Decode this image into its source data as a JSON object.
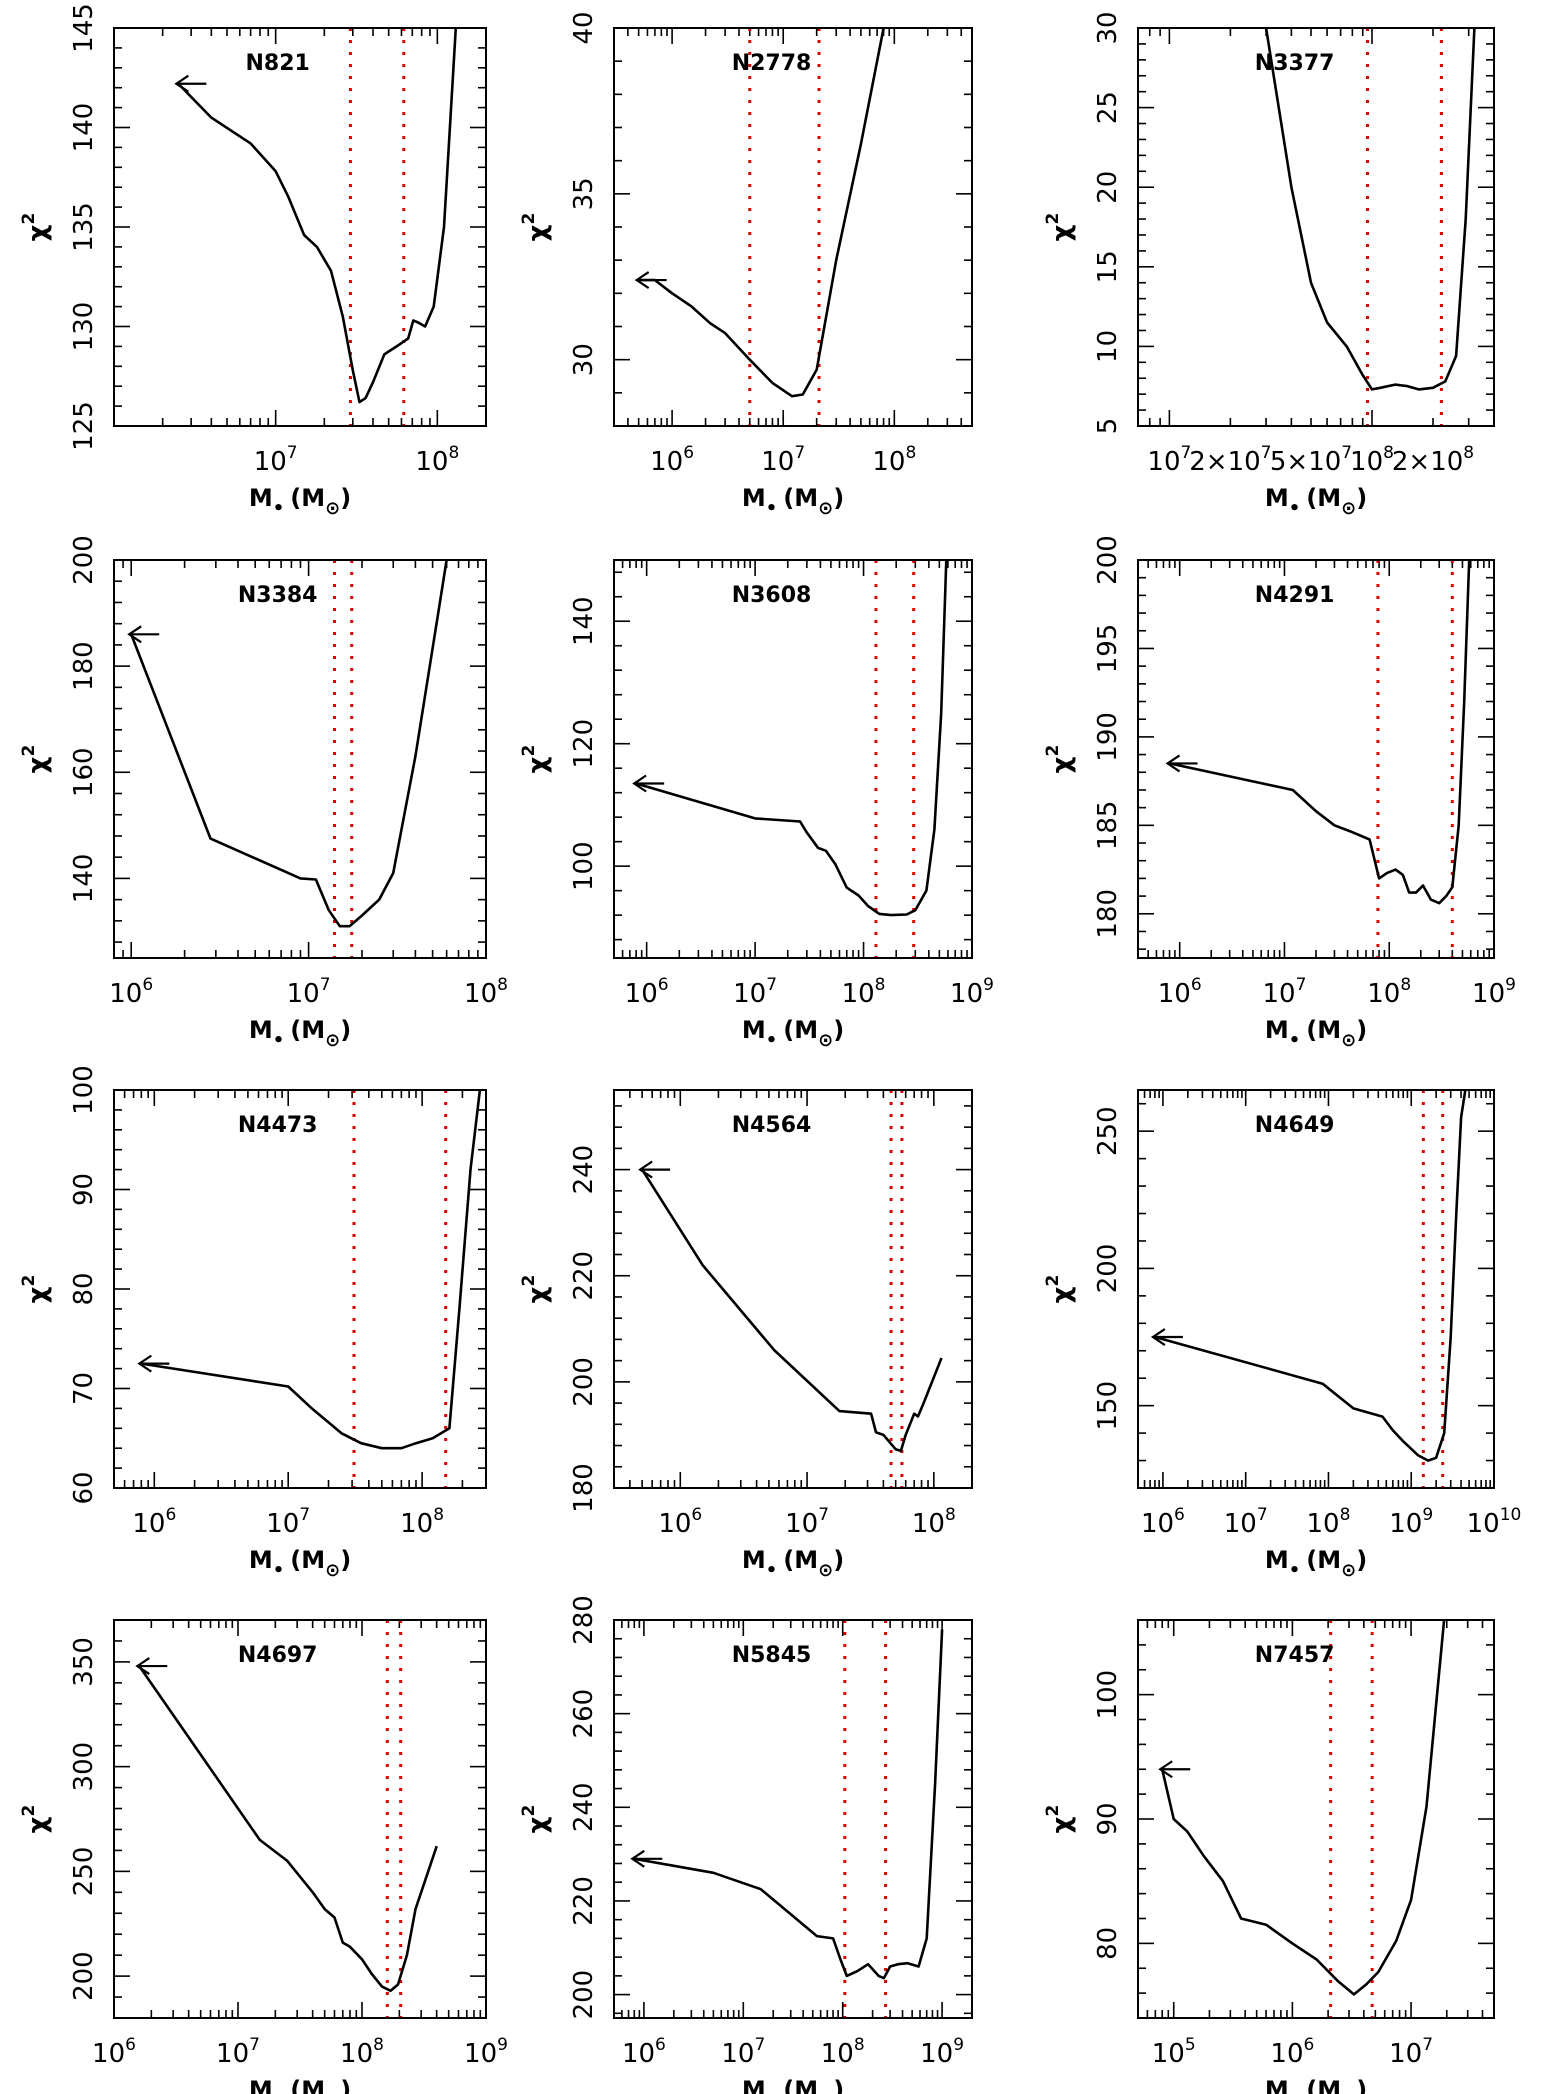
{
  "figure_axis_labels": {
    "y": "χ",
    "y_sup": "2",
    "x": "M",
    "x_sub": "•",
    "x_unit": "(M",
    "x_unit_sub": "⊙",
    "x_unit_end": ")"
  },
  "chart_data": [
    {
      "type": "line",
      "title": "N821",
      "xscale": "log",
      "xlim": [
        1000000.0,
        200000000.0
      ],
      "ylim": [
        125,
        145
      ],
      "xticks": [
        {
          "v": 10000000.0,
          "label": "10",
          "exp": "7"
        },
        {
          "v": 100000000.0,
          "label": "10",
          "exp": "8"
        }
      ],
      "yticks": [
        125,
        130,
        135,
        140,
        145
      ],
      "arrow": true,
      "bounds": [
        29000000.0,
        62000000.0
      ],
      "x": [
        2500000.0,
        4000000.0,
        7000000.0,
        10000000.0,
        12000000.0,
        15000000.0,
        18000000.0,
        22000000.0,
        26000000.0,
        30000000.0,
        33000000.0,
        36000000.0,
        40000000.0,
        47000000.0,
        56000000.0,
        66000000.0,
        71000000.0,
        76000000.0,
        84000000.0,
        95000000.0,
        110000000.0,
        130000000.0
      ],
      "y": [
        142.2,
        140.5,
        139.2,
        137.8,
        136.5,
        134.6,
        134,
        132.8,
        130.5,
        127.8,
        126.2,
        126.4,
        127.2,
        128.6,
        129,
        129.4,
        130.3,
        130.2,
        130,
        131,
        135,
        145
      ]
    },
    {
      "type": "line",
      "title": "N2778",
      "xscale": "log",
      "xlim": [
        300000.0,
        500000000.0
      ],
      "ylim": [
        28,
        40
      ],
      "xticks": [
        {
          "v": 1000000.0,
          "label": "10",
          "exp": "6"
        },
        {
          "v": 10000000.0,
          "label": "10",
          "exp": "7"
        },
        {
          "v": 100000000.0,
          "label": "10",
          "exp": "8"
        }
      ],
      "yticks": [
        30,
        35,
        40
      ],
      "arrow": true,
      "bounds": [
        5000000.0,
        21000000.0
      ],
      "x": [
        500000.0,
        700000.0,
        1000000.0,
        1500000.0,
        2200000.0,
        3000000.0,
        5000000.0,
        8000000.0,
        12000000.0,
        15000000.0,
        20000000.0,
        30000000.0,
        50000000.0,
        80000000.0
      ],
      "y": [
        32.4,
        32.4,
        32,
        31.6,
        31.1,
        30.8,
        30,
        29.3,
        28.9,
        28.95,
        29.7,
        33,
        36.5,
        40
      ]
    },
    {
      "type": "line",
      "title": "N3377",
      "xscale": "log",
      "xlim": [
        7000000.0,
        400000000.0
      ],
      "ylim": [
        5,
        30
      ],
      "xticks": [
        {
          "v": 10000000.0,
          "label": "10",
          "exp": "7"
        },
        {
          "v": 20000000.0,
          "label": "2×10",
          "exp": "7"
        },
        {
          "v": 50000000.0,
          "label": "5×10",
          "exp": "7"
        },
        {
          "v": 100000000.0,
          "label": "10",
          "exp": "8"
        },
        {
          "v": 200000000.0,
          "label": "2×10",
          "exp": "8"
        }
      ],
      "yticks": [
        5,
        10,
        15,
        20,
        25,
        30
      ],
      "arrow": false,
      "bounds": [
        95000000.0,
        220000000.0
      ],
      "x": [
        30000000.0,
        40000000.0,
        50000000.0,
        60000000.0,
        75000000.0,
        90000000.0,
        100000000.0,
        110000000.0,
        130000000.0,
        150000000.0,
        170000000.0,
        200000000.0,
        230000000.0,
        260000000.0,
        290000000.0,
        320000000.0
      ],
      "y": [
        30,
        20,
        14,
        11.5,
        10,
        8.2,
        7.3,
        7.4,
        7.6,
        7.5,
        7.3,
        7.4,
        7.8,
        9.4,
        18,
        30
      ]
    },
    {
      "type": "line",
      "title": "N3384",
      "xscale": "log",
      "xlim": [
        800000.0,
        100000000.0
      ],
      "ylim": [
        125,
        200
      ],
      "xticks": [
        {
          "v": 1000000.0,
          "label": "10",
          "exp": "6"
        },
        {
          "v": 10000000.0,
          "label": "10",
          "exp": "7"
        },
        {
          "v": 100000000.0,
          "label": "10",
          "exp": "8"
        }
      ],
      "yticks": [
        140,
        160,
        180,
        200
      ],
      "arrow": true,
      "bounds": [
        14000000.0,
        17500000.0
      ],
      "x": [
        1000000.0,
        2800000.0,
        9000000.0,
        11000000.0,
        13000000.0,
        15000000.0,
        17000000.0,
        20000000.0,
        25000000.0,
        30000000.0,
        40000000.0,
        55000000.0,
        60000000.0
      ],
      "y": [
        186,
        147.5,
        140,
        139.8,
        134,
        131,
        131,
        133,
        136,
        141,
        163,
        192,
        200
      ]
    },
    {
      "type": "line",
      "title": "N3608",
      "xscale": "log",
      "xlim": [
        500000.0,
        1000000000.0
      ],
      "ylim": [
        85,
        150
      ],
      "xticks": [
        {
          "v": 1000000.0,
          "label": "10",
          "exp": "6"
        },
        {
          "v": 10000000.0,
          "label": "10",
          "exp": "7"
        },
        {
          "v": 100000000.0,
          "label": "10",
          "exp": "8"
        },
        {
          "v": 1000000000.0,
          "label": "10",
          "exp": "9"
        }
      ],
      "yticks": [
        100,
        120,
        140
      ],
      "arrow": true,
      "bounds": [
        130000000.0,
        290000000.0
      ],
      "x": [
        800000.0,
        10000000.0,
        26000000.0,
        30000000.0,
        38000000.0,
        45000000.0,
        55000000.0,
        70000000.0,
        90000000.0,
        110000000.0,
        140000000.0,
        180000000.0,
        250000000.0,
        300000000.0,
        380000000.0,
        450000000.0,
        520000000.0,
        580000000.0
      ],
      "y": [
        113.5,
        107.8,
        107.3,
        105.5,
        103,
        102.5,
        100.3,
        96.5,
        95.2,
        93.5,
        92.2,
        92,
        92.1,
        92.8,
        96,
        106,
        125,
        150
      ]
    },
    {
      "type": "line",
      "title": "N4291",
      "xscale": "log",
      "xlim": [
        400000.0,
        1000000000.0
      ],
      "ylim": [
        177.5,
        200
      ],
      "xticks": [
        {
          "v": 1000000.0,
          "label": "10",
          "exp": "6"
        },
        {
          "v": 10000000.0,
          "label": "10",
          "exp": "7"
        },
        {
          "v": 100000000.0,
          "label": "10",
          "exp": "8"
        },
        {
          "v": 1000000000.0,
          "label": "10",
          "exp": "9"
        }
      ],
      "yticks": [
        180,
        185,
        190,
        195,
        200
      ],
      "arrow": true,
      "bounds": [
        78000000.0,
        400000000.0
      ],
      "x": [
        800000.0,
        12000000.0,
        20000000.0,
        30000000.0,
        45000000.0,
        65000000.0,
        80000000.0,
        95000000.0,
        115000000.0,
        135000000.0,
        155000000.0,
        180000000.0,
        210000000.0,
        250000000.0,
        300000000.0,
        350000000.0,
        400000000.0,
        460000000.0,
        520000000.0,
        580000000.0
      ],
      "y": [
        188.5,
        187,
        185.8,
        185,
        184.6,
        184.2,
        182,
        182.3,
        182.5,
        182.2,
        181.2,
        181.2,
        181.6,
        180.8,
        180.6,
        181,
        181.5,
        185,
        192,
        200
      ]
    },
    {
      "type": "line",
      "title": "N4473",
      "xscale": "log",
      "xlim": [
        500000.0,
        300000000.0
      ],
      "ylim": [
        60,
        100
      ],
      "xticks": [
        {
          "v": 1000000.0,
          "label": "10",
          "exp": "6"
        },
        {
          "v": 10000000.0,
          "label": "10",
          "exp": "7"
        },
        {
          "v": 100000000.0,
          "label": "10",
          "exp": "8"
        }
      ],
      "yticks": [
        60,
        70,
        80,
        90,
        100
      ],
      "arrow": true,
      "bounds": [
        31000000.0,
        150000000.0
      ],
      "x": [
        800000.0,
        10000000.0,
        15000000.0,
        25000000.0,
        35000000.0,
        50000000.0,
        70000000.0,
        90000000.0,
        120000000.0,
        160000000.0,
        190000000.0,
        230000000.0,
        270000000.0
      ],
      "y": [
        72.5,
        70.2,
        68,
        65.5,
        64.5,
        64,
        64,
        64.5,
        65,
        66,
        78,
        92,
        100
      ]
    },
    {
      "type": "line",
      "title": "N4564",
      "xscale": "log",
      "xlim": [
        300000.0,
        200000000.0
      ],
      "ylim": [
        180,
        255
      ],
      "xticks": [
        {
          "v": 1000000.0,
          "label": "10",
          "exp": "6"
        },
        {
          "v": 10000000.0,
          "label": "10",
          "exp": "7"
        },
        {
          "v": 100000000.0,
          "label": "10",
          "exp": "8"
        }
      ],
      "yticks": [
        180,
        200,
        220,
        240
      ],
      "arrow": true,
      "bounds": [
        46000000.0,
        56000000.0
      ],
      "x": [
        500000.0,
        1500000.0,
        5500000.0,
        18000000.0,
        32000000.0,
        35000000.0,
        40000000.0,
        50000000.0,
        55000000.0,
        60000000.0,
        70000000.0,
        75000000.0,
        83000000.0,
        115000000.0
      ],
      "y": [
        240,
        222,
        206,
        194.5,
        194,
        190.5,
        190,
        187.3,
        187,
        190,
        194,
        193.5,
        196,
        204.5
      ]
    },
    {
      "type": "line",
      "title": "N4649",
      "xscale": "log",
      "xlim": [
        500000.0,
        10000000000.0
      ],
      "ylim": [
        120,
        265
      ],
      "xticks": [
        {
          "v": 1000000.0,
          "label": "10",
          "exp": "6"
        },
        {
          "v": 10000000.0,
          "label": "10",
          "exp": "7"
        },
        {
          "v": 100000000.0,
          "label": "10",
          "exp": "8"
        },
        {
          "v": 1000000000.0,
          "label": "10",
          "exp": "9"
        },
        {
          "v": 10000000000.0,
          "label": "10",
          "exp": "10"
        }
      ],
      "yticks": [
        150,
        200,
        250
      ],
      "arrow": true,
      "bounds": [
        1400000000.0,
        2400000000.0
      ],
      "x": [
        800000.0,
        85000000.0,
        200000000.0,
        450000000.0,
        600000000.0,
        800000000.0,
        1200000000.0,
        1600000000.0,
        2000000000.0,
        2500000000.0,
        3000000000.0,
        3500000000.0,
        4000000000.0,
        4500000000.0
      ],
      "y": [
        175,
        158,
        149,
        146,
        141,
        137,
        132,
        130,
        131,
        140,
        175,
        220,
        255,
        265
      ]
    },
    {
      "type": "line",
      "title": "N4697",
      "xscale": "log",
      "xlim": [
        1000000.0,
        1000000000.0
      ],
      "ylim": [
        180,
        370
      ],
      "xticks": [
        {
          "v": 1000000.0,
          "label": "10",
          "exp": "6"
        },
        {
          "v": 10000000.0,
          "label": "10",
          "exp": "7"
        },
        {
          "v": 100000000.0,
          "label": "10",
          "exp": "8"
        },
        {
          "v": 1000000000.0,
          "label": "10",
          "exp": "9"
        }
      ],
      "yticks": [
        200,
        250,
        300,
        350
      ],
      "arrow": true,
      "bounds": [
        160000000.0,
        205000000.0
      ],
      "x": [
        1600000.0,
        15000000.0,
        25000000.0,
        40000000.0,
        50000000.0,
        60000000.0,
        70000000.0,
        80000000.0,
        100000000.0,
        120000000.0,
        145000000.0,
        170000000.0,
        195000000.0,
        230000000.0,
        270000000.0,
        400000000.0
      ],
      "y": [
        348,
        265,
        255,
        240,
        232,
        228,
        216,
        214,
        208,
        201,
        195,
        193,
        196,
        210,
        232,
        262
      ]
    },
    {
      "type": "line",
      "title": "N5845",
      "xscale": "log",
      "xlim": [
        500000.0,
        2000000000.0
      ],
      "ylim": [
        195,
        280
      ],
      "xticks": [
        {
          "v": 1000000.0,
          "label": "10",
          "exp": "6"
        },
        {
          "v": 10000000.0,
          "label": "10",
          "exp": "7"
        },
        {
          "v": 100000000.0,
          "label": "10",
          "exp": "8"
        },
        {
          "v": 1000000000.0,
          "label": "10",
          "exp": "9"
        }
      ],
      "yticks": [
        200,
        220,
        240,
        260,
        280
      ],
      "arrow": true,
      "bounds": [
        105000000.0,
        270000000.0
      ],
      "x": [
        800000.0,
        5000000.0,
        15000000.0,
        55000000.0,
        80000000.0,
        95000000.0,
        110000000.0,
        140000000.0,
        180000000.0,
        230000000.0,
        260000000.0,
        300000000.0,
        360000000.0,
        450000000.0,
        580000000.0,
        700000000.0,
        850000000.0,
        1000000000.0
      ],
      "y": [
        229,
        226,
        222.5,
        212.5,
        212,
        207.5,
        204,
        205,
        206.5,
        204,
        203.5,
        206,
        206.5,
        206.7,
        206,
        212,
        245,
        278
      ]
    },
    {
      "type": "line",
      "title": "N7457",
      "xscale": "log",
      "xlim": [
        50000.0,
        50000000.0
      ],
      "ylim": [
        74,
        106
      ],
      "xticks": [
        {
          "v": 100000.0,
          "label": "10",
          "exp": "5"
        },
        {
          "v": 1000000.0,
          "label": "10",
          "exp": "6"
        },
        {
          "v": 10000000.0,
          "label": "10",
          "exp": "7"
        }
      ],
      "yticks": [
        80,
        90,
        100
      ],
      "arrow": true,
      "bounds": [
        2100000.0,
        4700000.0
      ],
      "x": [
        80000.0,
        100000.0,
        130000.0,
        180000.0,
        260000.0,
        370000.0,
        600000.0,
        1000000.0,
        1600000.0,
        2400000.0,
        3300000.0,
        4200000.0,
        5300000.0,
        7500000.0,
        10000000.0,
        13500000.0,
        19000000.0
      ],
      "y": [
        94,
        90,
        89,
        87,
        85,
        82,
        81.5,
        80,
        78.7,
        77,
        75.9,
        76.7,
        77.7,
        80.2,
        83.5,
        91,
        106
      ]
    }
  ]
}
